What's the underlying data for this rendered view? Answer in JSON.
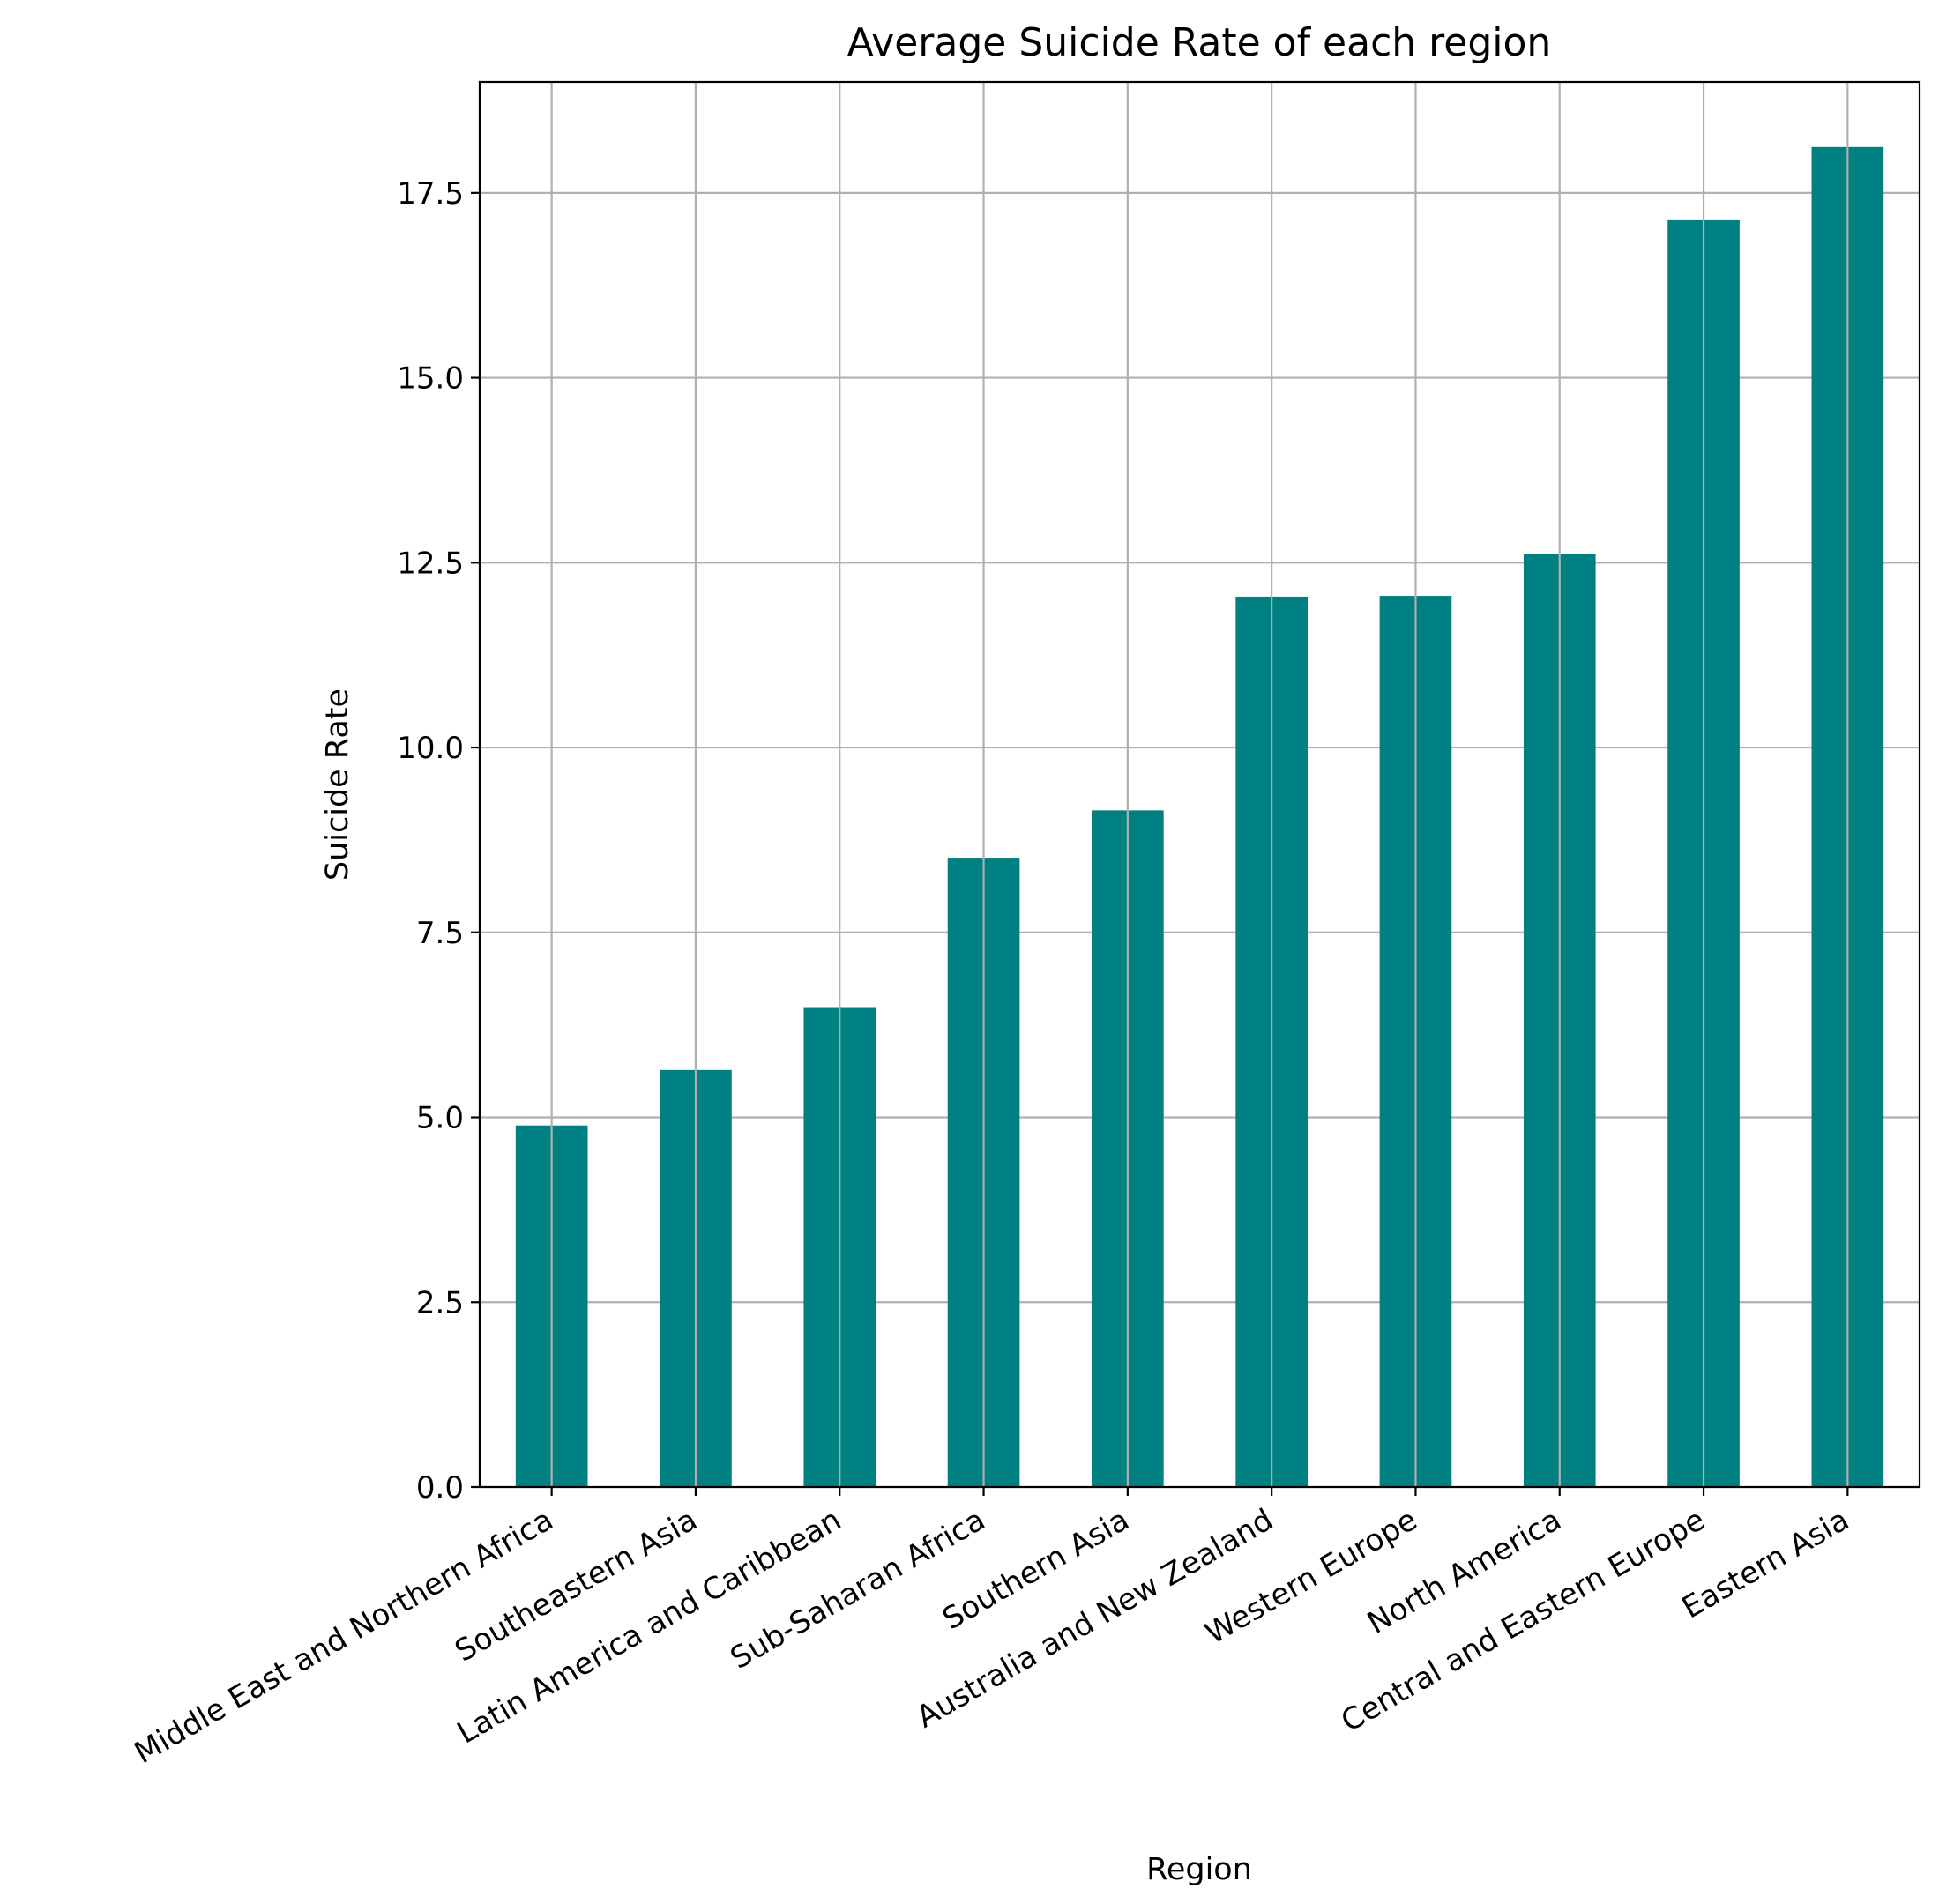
{
  "chart_data": {
    "type": "bar",
    "title": "Average Suicide Rate of each region",
    "xlabel": "Region",
    "ylabel": "Suicide Rate",
    "categories": [
      "Middle East and Northern Africa",
      "Southeastern Asia",
      "Latin America and Caribbean",
      "Sub-Saharan Africa",
      "Southern Asia",
      "Australia and New Zealand",
      "Western Europe",
      "North America",
      "Central and Eastern Europe",
      "Eastern Asia"
    ],
    "values": [
      4.89,
      5.64,
      6.49,
      8.51,
      9.15,
      12.04,
      12.05,
      12.62,
      17.13,
      18.12
    ],
    "ylim": [
      0,
      19.0
    ],
    "yticks": [
      0.0,
      2.5,
      5.0,
      7.5,
      10.0,
      12.5,
      15.0,
      17.5
    ],
    "ytick_labels": [
      "0.0",
      "2.5",
      "5.0",
      "7.5",
      "10.0",
      "12.5",
      "15.0",
      "17.5"
    ],
    "grid": true,
    "bar_color": "#008080"
  }
}
